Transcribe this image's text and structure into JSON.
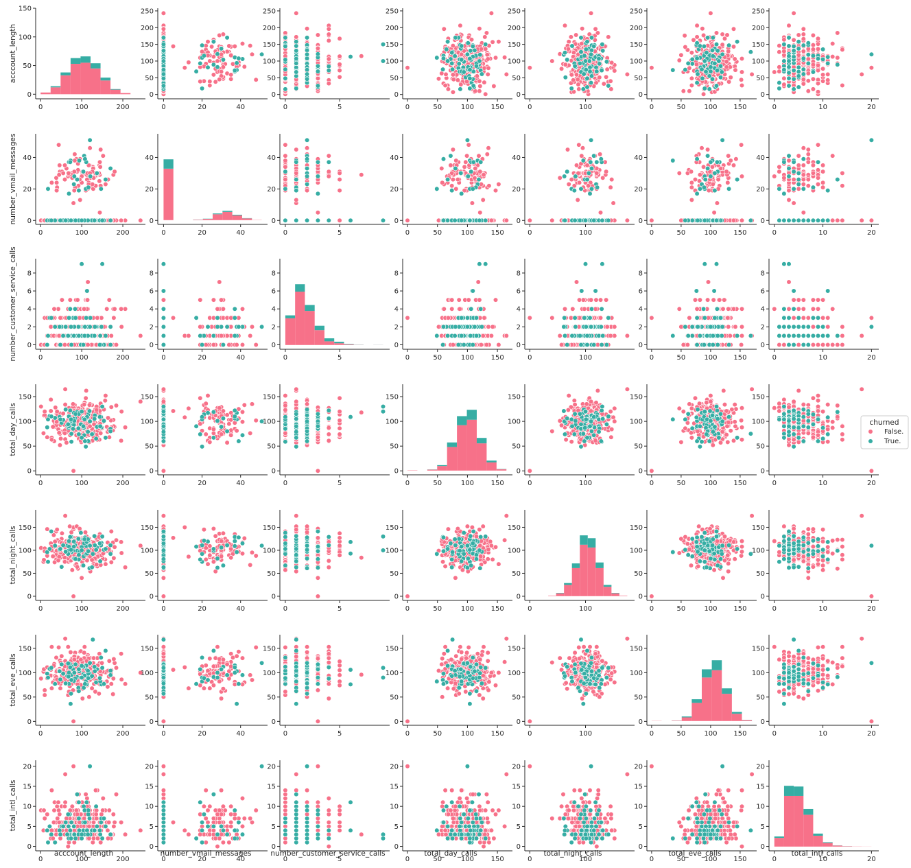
{
  "chart_data": {
    "type": "scatter",
    "subtype": "pairplot",
    "variables": [
      {
        "name": "acccount_length",
        "ticks": [
          0,
          100,
          200
        ],
        "ylim": [
          -13,
          258
        ],
        "ylimHist": [
          -8,
          150
        ],
        "yticks": [
          0,
          50,
          100,
          150,
          200,
          250
        ],
        "xlim": [
          -12,
          255
        ],
        "range": [
          1,
          243
        ],
        "center": 100,
        "sd": 40,
        "discrete": false
      },
      {
        "name": "number_vmail_messages",
        "ticks": [
          0,
          20,
          40
        ],
        "ylim": [
          -2.5,
          55
        ],
        "yticks": [
          0,
          20,
          40
        ],
        "xlim": [
          -3,
          54
        ],
        "range": [
          0,
          51
        ],
        "center": 29,
        "sd": 8,
        "discrete": false
      },
      {
        "name": "number_customer_service_calls",
        "ticks": [
          0,
          5
        ],
        "ylim": [
          -0.5,
          9.6
        ],
        "yticks": [
          0,
          2,
          4,
          6,
          8
        ],
        "xlim": [
          -0.5,
          9.6
        ],
        "range": [
          0,
          9
        ],
        "center": 1.5,
        "sd": 1.3,
        "discrete": true
      },
      {
        "name": "total_day_calls",
        "ticks": [
          0,
          50,
          100,
          150
        ],
        "ylim": [
          -8,
          175
        ],
        "yticks": [
          0,
          50,
          100,
          150
        ],
        "xlim": [
          -8,
          175
        ],
        "range": [
          0,
          165
        ],
        "center": 100,
        "sd": 20,
        "discrete": false
      },
      {
        "name": "total_night_calls",
        "ticks": [
          0,
          100
        ],
        "ylim": [
          -9,
          188
        ],
        "yticks": [
          0,
          50,
          100,
          150
        ],
        "xlim": [
          -9,
          188
        ],
        "range": [
          33,
          175
        ],
        "center": 100,
        "sd": 20,
        "discrete": false
      },
      {
        "name": "total_eve_calls",
        "ticks": [
          0,
          50,
          100,
          150
        ],
        "ylim": [
          -8,
          178
        ],
        "yticks": [
          0,
          50,
          100,
          150
        ],
        "xlim": [
          -8,
          178
        ],
        "range": [
          0,
          170
        ],
        "center": 100,
        "sd": 20,
        "discrete": false
      },
      {
        "name": "total_intl_calls",
        "ticks": [
          0,
          10,
          20
        ],
        "ylim": [
          -1.1,
          21.5
        ],
        "yticks": [
          0,
          5,
          10,
          15,
          20
        ],
        "xlim": [
          -1.1,
          21.5
        ],
        "range": [
          0,
          20
        ],
        "center": 4.5,
        "sd": 2.5,
        "discrete": true
      }
    ],
    "histograms": [
      {
        "edges": [
          0,
          24.3,
          48.6,
          72.9,
          97.2,
          121.5,
          145.8,
          170.1,
          194.4,
          218.7,
          243
        ],
        "false": [
          3,
          12,
          33,
          53,
          55,
          45,
          24,
          8,
          2,
          0
        ],
        "true": [
          0,
          2,
          5,
          10,
          11,
          9,
          5,
          1,
          0,
          0
        ]
      },
      {
        "edges": [
          0,
          5.1,
          10.2,
          15.3,
          20.4,
          25.5,
          30.6,
          35.7,
          40.8,
          45.9,
          51
        ],
        "false": [
          44,
          0,
          0,
          0.4,
          1,
          5,
          7,
          4,
          1.5,
          0.2
        ],
        "true": [
          8,
          0,
          0,
          0.1,
          0.2,
          0.7,
          1,
          0.6,
          0.2,
          0
        ]
      },
      {
        "edges": [
          0,
          0.9,
          1.8,
          2.7,
          3.6,
          4.5,
          5.4,
          6.3,
          7.2,
          8.1,
          9
        ],
        "false": [
          1.8,
          3.6,
          2.3,
          1.0,
          0.25,
          0.12,
          0.04,
          0.01,
          0,
          0.005
        ],
        "true": [
          0.2,
          0.5,
          0.4,
          0.3,
          0.2,
          0.1,
          0.03,
          0.01,
          0,
          0.005
        ]
      },
      {
        "edges": [
          0,
          16.5,
          33,
          49.5,
          66,
          82.5,
          99,
          115.5,
          132,
          148.5,
          165
        ],
        "false": [
          0.3,
          0,
          1,
          5,
          26,
          50,
          56,
          30,
          9,
          1.5
        ],
        "true": [
          0,
          0,
          0.2,
          1,
          5,
          10,
          11,
          6,
          2,
          0.3
        ]
      },
      {
        "edges": [
          33,
          47.2,
          61.4,
          75.6,
          89.8,
          104,
          118.2,
          132.4,
          146.6,
          160.8,
          175
        ],
        "false": [
          0.5,
          3,
          12,
          30,
          55,
          52,
          30,
          10,
          3,
          0.5
        ],
        "true": [
          0,
          0.5,
          2,
          5,
          10,
          10,
          6,
          2,
          0.5,
          0
        ]
      },
      {
        "edges": [
          0,
          17,
          34,
          51,
          68,
          85,
          102,
          119,
          136,
          153,
          170
        ],
        "false": [
          0.2,
          0,
          0.5,
          4,
          20,
          48,
          56,
          30,
          8,
          1
        ],
        "true": [
          0,
          0,
          0.1,
          1,
          4,
          9,
          11,
          6,
          2,
          0.2
        ]
      },
      {
        "edges": [
          0,
          2,
          4,
          6,
          8,
          10,
          12,
          14,
          16,
          18,
          20
        ],
        "false": [
          1.2,
          7,
          7,
          4.4,
          1.5,
          0.5,
          0.15,
          0.05,
          0.02,
          0.01
        ],
        "true": [
          0.2,
          1.4,
          1.3,
          0.8,
          0.3,
          0.1,
          0.02,
          0.01,
          0,
          0
        ]
      }
    ],
    "series": [
      {
        "name": "False.",
        "color": "#f77189"
      },
      {
        "name": "True.",
        "color": "#36ada4"
      }
    ],
    "legend": {
      "title": "churned",
      "placement": "right"
    },
    "grid": false
  }
}
